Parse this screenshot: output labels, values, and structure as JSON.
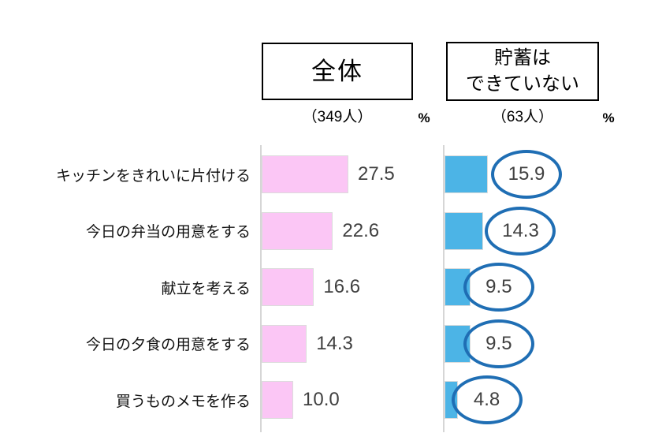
{
  "headers": {
    "overall": {
      "title": "全体",
      "sample": "（349人）",
      "unit": "%"
    },
    "no_savings": {
      "title_line1": "貯蓄は",
      "title_line2": "できていない",
      "sample": "（63人）",
      "unit": "%"
    }
  },
  "chart_data": {
    "type": "bar",
    "orientation": "horizontal",
    "title": "",
    "unit": "%",
    "xlim": [
      0,
      30
    ],
    "grid": false,
    "legend_position": "top-as-boxed-headers",
    "categories": [
      "キッチンをきれいに片付ける",
      "今日の弁当の用意をする",
      "献立を考える",
      "今日の夕食の用意をする",
      "買うものメモを作る"
    ],
    "series": [
      {
        "name": "全体",
        "sample_size": 349,
        "values": [
          27.5,
          22.6,
          16.6,
          14.3,
          10.0
        ],
        "value_labels": [
          "27.5",
          "22.6",
          "16.6",
          "14.3",
          "10.0"
        ],
        "bar_color": "#FBC6F5",
        "value_style": "plain"
      },
      {
        "name": "貯蓄はできていない",
        "sample_size": 63,
        "values": [
          15.9,
          14.3,
          9.5,
          9.5,
          4.8
        ],
        "value_labels": [
          "15.9",
          "14.3",
          "9.5",
          "9.5",
          "4.8"
        ],
        "bar_color": "#4CB4E6",
        "value_style": "circled",
        "circle_color": "#1F6EB4"
      }
    ],
    "colors": {
      "axis": "#D6D6D6",
      "bar_border": "#DCDCDC",
      "value_text": "#404040",
      "label_text": "#111111"
    }
  }
}
